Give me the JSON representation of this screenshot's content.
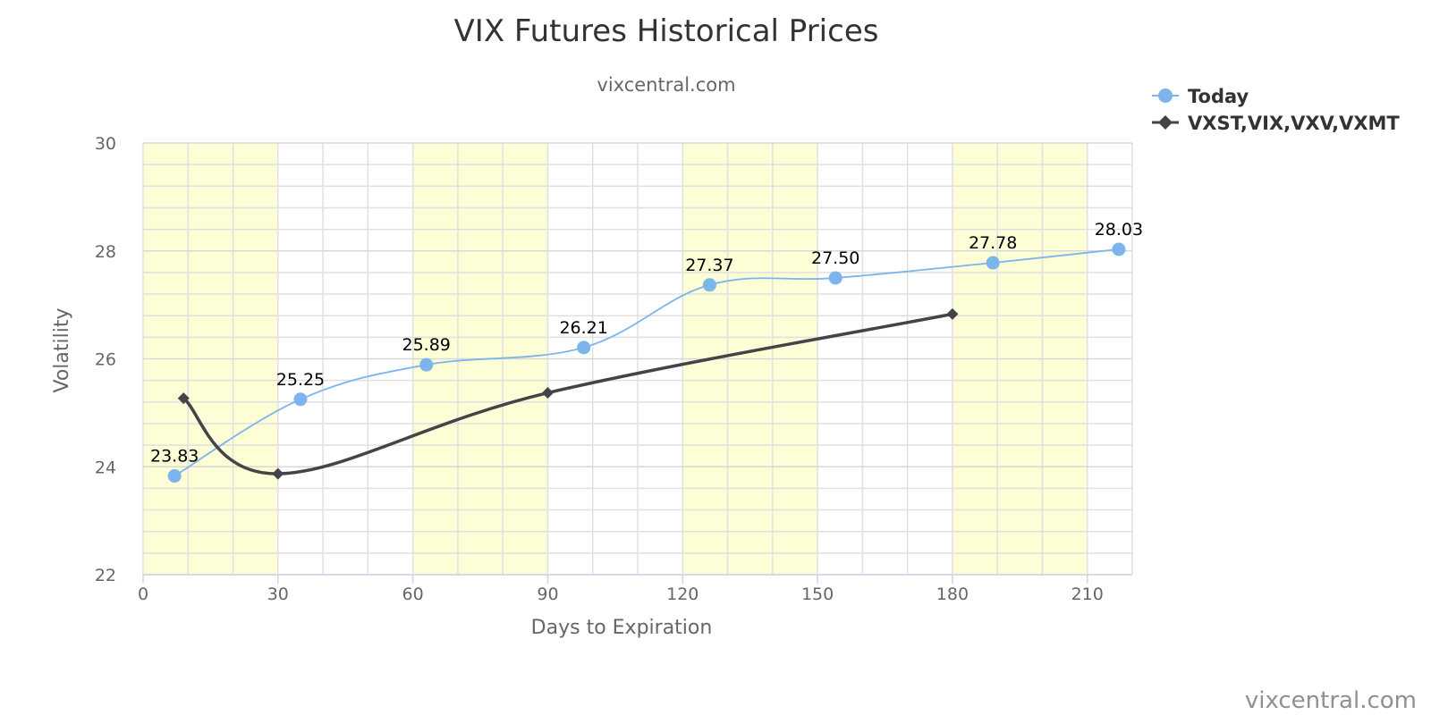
{
  "chart_data": {
    "type": "line",
    "title": "VIX Futures Historical Prices",
    "subtitle": "vixcentral.com",
    "xlabel": "Days to Expiration",
    "ylabel": "Volatility",
    "xlim": [
      0,
      220
    ],
    "ylim": [
      22,
      30
    ],
    "x_ticks": [
      "0",
      "30",
      "60",
      "90",
      "120",
      "150",
      "180",
      "210"
    ],
    "y_ticks": [
      "22",
      "24",
      "26",
      "28",
      "30"
    ],
    "x_tick_values": [
      0,
      30,
      60,
      90,
      120,
      150,
      180,
      210
    ],
    "y_tick_values": [
      22,
      24,
      26,
      28,
      30
    ],
    "grid": true,
    "shaded_x_bands": [
      [
        0,
        30
      ],
      [
        60,
        90
      ],
      [
        120,
        150
      ],
      [
        180,
        210
      ]
    ],
    "band_color": "#fdfdd6",
    "legend_position": "top-right",
    "series": [
      {
        "name": "Today",
        "color": "#7cb5ec",
        "marker": "circle",
        "line": "thin-smooth",
        "x": [
          7,
          35,
          63,
          98,
          126,
          154,
          189,
          217
        ],
        "y": [
          23.83,
          25.25,
          25.89,
          26.21,
          27.37,
          27.5,
          27.78,
          28.03
        ],
        "labels": [
          "23.83",
          "25.25",
          "25.89",
          "26.21",
          "27.37",
          "27.50",
          "27.78",
          "28.03"
        ]
      },
      {
        "name": "VXST,VIX,VXV,VXMT",
        "color": "#434348",
        "marker": "diamond",
        "line": "thick-smooth",
        "x": [
          9,
          30,
          90,
          180
        ],
        "y": [
          25.27,
          23.87,
          25.37,
          26.83
        ]
      }
    ]
  },
  "credit": "vixcentral.com"
}
